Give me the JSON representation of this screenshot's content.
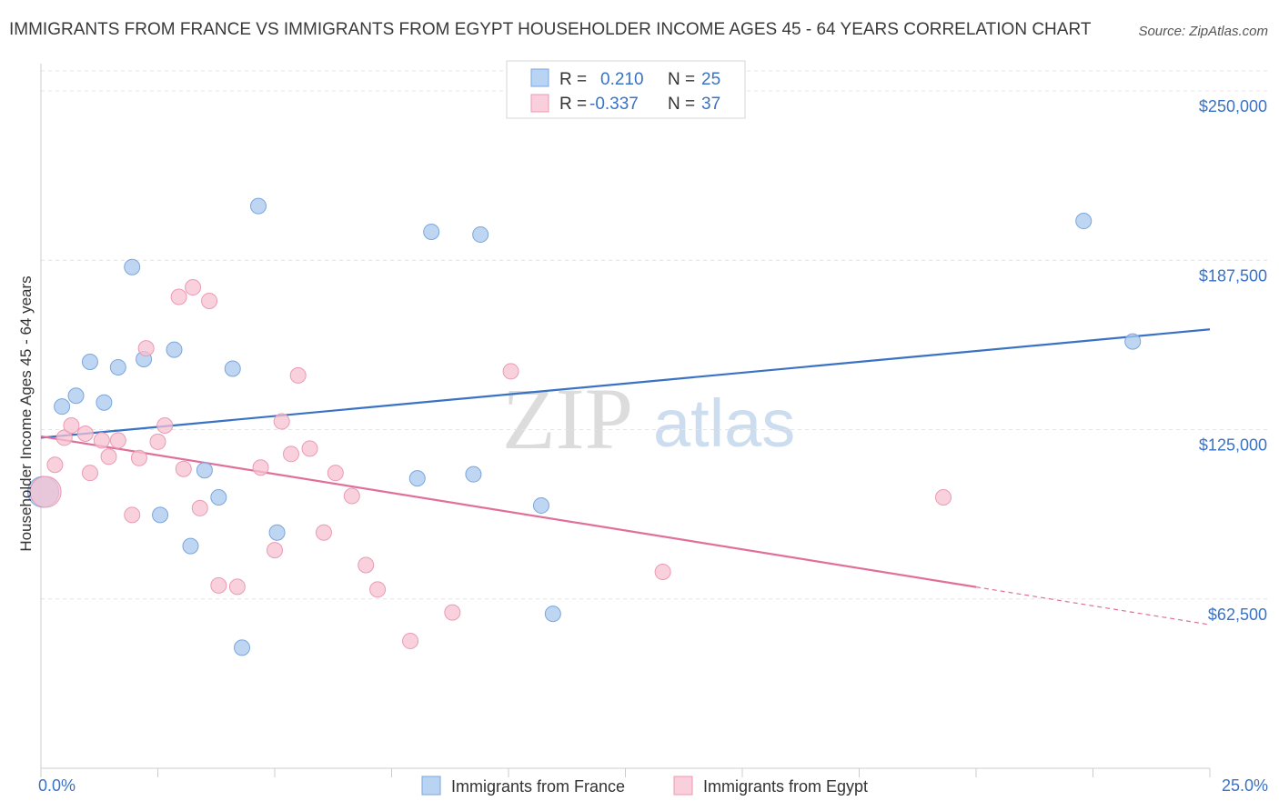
{
  "chart_data": {
    "type": "scatter",
    "title": "IMMIGRANTS FROM FRANCE VS IMMIGRANTS FROM EGYPT HOUSEHOLDER INCOME AGES 45 - 64 YEARS CORRELATION CHART",
    "source": "Source: ZipAtlas.com",
    "ylabel": "Householder Income Ages 45 - 64 years",
    "xlabel": "",
    "xlim": [
      0,
      25
    ],
    "ylim": [
      0,
      250000
    ],
    "x_tick_labels": [
      {
        "value": 0,
        "label": "0.0%"
      },
      {
        "value": 25,
        "label": "25.0%"
      }
    ],
    "y_tick_labels": [
      {
        "value": 62500,
        "label": "$62,500"
      },
      {
        "value": 125000,
        "label": "$125,000"
      },
      {
        "value": 187500,
        "label": "$187,500"
      },
      {
        "value": 250000,
        "label": "$250,000"
      }
    ],
    "grid": true,
    "watermark": {
      "zip": "ZIP",
      "atlas": "atlas"
    },
    "legend": {
      "placement": "top-center",
      "entries": [
        {
          "r_label": "R =",
          "r_value": "0.210",
          "n_label": "N =",
          "n_value": "25"
        },
        {
          "r_label": "R =",
          "r_value": "-0.337",
          "n_label": "N =",
          "n_value": "37"
        }
      ]
    },
    "series": [
      {
        "name": "Immigrants from France",
        "color": "#a9c8ef",
        "stroke": "#7aa6dd",
        "line_color": "#3a72c4",
        "trend": {
          "x0": 0,
          "y0": 122000,
          "x1": 25,
          "y1": 162000,
          "dash_from": null
        },
        "points": [
          {
            "x": 0.05,
            "y": 102000,
            "size": "large"
          },
          {
            "x": 0.45,
            "y": 133500
          },
          {
            "x": 0.75,
            "y": 137500
          },
          {
            "x": 1.05,
            "y": 150000
          },
          {
            "x": 1.35,
            "y": 135000
          },
          {
            "x": 1.65,
            "y": 148000
          },
          {
            "x": 1.95,
            "y": 185000
          },
          {
            "x": 2.2,
            "y": 151000
          },
          {
            "x": 2.55,
            "y": 93500
          },
          {
            "x": 2.85,
            "y": 154500
          },
          {
            "x": 3.2,
            "y": 82000
          },
          {
            "x": 3.5,
            "y": 110000
          },
          {
            "x": 3.8,
            "y": 100000
          },
          {
            "x": 4.1,
            "y": 147500
          },
          {
            "x": 4.3,
            "y": 44500
          },
          {
            "x": 4.65,
            "y": 207500
          },
          {
            "x": 5.05,
            "y": 87000
          },
          {
            "x": 8.05,
            "y": 107000
          },
          {
            "x": 8.35,
            "y": 198000
          },
          {
            "x": 9.25,
            "y": 108500
          },
          {
            "x": 9.4,
            "y": 197000
          },
          {
            "x": 10.7,
            "y": 97000
          },
          {
            "x": 10.95,
            "y": 57000
          },
          {
            "x": 22.3,
            "y": 202000
          },
          {
            "x": 23.35,
            "y": 157500
          }
        ]
      },
      {
        "name": "Immigrants from Egypt",
        "color": "#f6c2d2",
        "stroke": "#ec9ab4",
        "line_color": "#e0709a",
        "trend": {
          "x0": 0,
          "y0": 122500,
          "x1": 25,
          "y1": 53000,
          "dash_from": 20
        },
        "points": [
          {
            "x": 0.1,
            "y": 102000,
            "size": "large"
          },
          {
            "x": 0.3,
            "y": 112000
          },
          {
            "x": 0.5,
            "y": 122000
          },
          {
            "x": 0.65,
            "y": 126500
          },
          {
            "x": 0.95,
            "y": 123500
          },
          {
            "x": 1.05,
            "y": 109000
          },
          {
            "x": 1.3,
            "y": 121000
          },
          {
            "x": 1.45,
            "y": 115000
          },
          {
            "x": 1.65,
            "y": 121000
          },
          {
            "x": 1.95,
            "y": 93500
          },
          {
            "x": 2.1,
            "y": 114500
          },
          {
            "x": 2.25,
            "y": 155000
          },
          {
            "x": 2.5,
            "y": 120500
          },
          {
            "x": 2.65,
            "y": 126500
          },
          {
            "x": 2.95,
            "y": 174000
          },
          {
            "x": 3.05,
            "y": 110500
          },
          {
            "x": 3.25,
            "y": 177500
          },
          {
            "x": 3.4,
            "y": 96000
          },
          {
            "x": 3.6,
            "y": 172500
          },
          {
            "x": 3.8,
            "y": 67500
          },
          {
            "x": 4.2,
            "y": 67000
          },
          {
            "x": 4.7,
            "y": 111000
          },
          {
            "x": 5.0,
            "y": 80500
          },
          {
            "x": 5.15,
            "y": 128000
          },
          {
            "x": 5.35,
            "y": 116000
          },
          {
            "x": 5.5,
            "y": 145000
          },
          {
            "x": 5.75,
            "y": 118000
          },
          {
            "x": 6.05,
            "y": 87000
          },
          {
            "x": 6.3,
            "y": 109000
          },
          {
            "x": 6.65,
            "y": 100500
          },
          {
            "x": 6.95,
            "y": 75000
          },
          {
            "x": 7.2,
            "y": 66000
          },
          {
            "x": 7.9,
            "y": 47000
          },
          {
            "x": 8.8,
            "y": 57500
          },
          {
            "x": 10.05,
            "y": 146500
          },
          {
            "x": 13.3,
            "y": 72500
          },
          {
            "x": 19.3,
            "y": 100000
          }
        ]
      }
    ]
  }
}
